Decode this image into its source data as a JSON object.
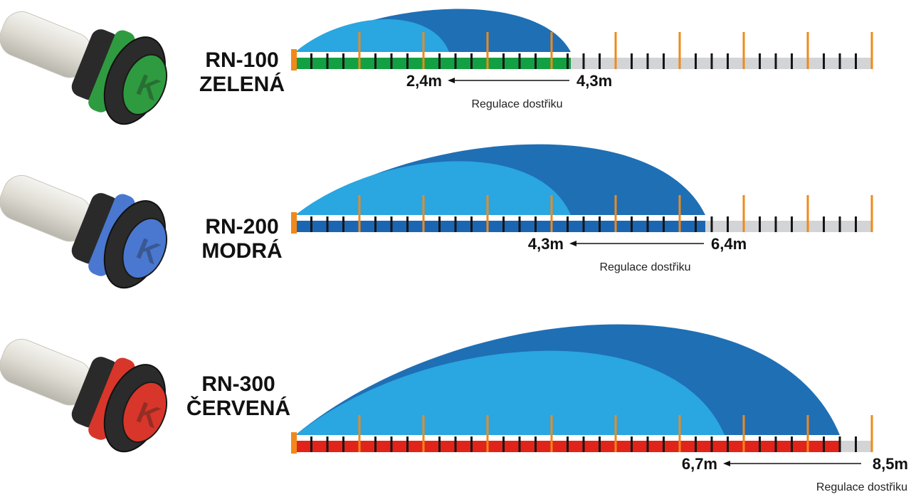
{
  "colors": {
    "water_dark": "#1f6fb5",
    "water_light": "#2aa6e1",
    "tick_orange": "#f0891a",
    "tick_black": "#151515",
    "track_grey": "#d2d4d6"
  },
  "rows": [
    {
      "model": "RN-100",
      "color_name": "ZELENÁ",
      "band_color": "#12a043",
      "nozzle_color": "#2f9b40",
      "min_range": "2,4m",
      "max_range": "4,3m",
      "caption": "Regulace dostřiku",
      "min_value": 2.4,
      "max_value": 4.3
    },
    {
      "model": "RN-200",
      "color_name": "MODRÁ",
      "band_color": "#1b66b3",
      "nozzle_color": "#4a78d0",
      "min_range": "4,3m",
      "max_range": "6,4m",
      "caption": "Regulace dostřiku",
      "min_value": 4.3,
      "max_value": 6.4
    },
    {
      "model": "RN-300",
      "color_name": "ČERVENÁ",
      "band_color": "#e2231a",
      "nozzle_color": "#d8362a",
      "min_range": "6,7m",
      "max_range": "8,5m",
      "caption": "Regulace dostřiku",
      "min_value": 6.7,
      "max_value": 8.5
    }
  ]
}
